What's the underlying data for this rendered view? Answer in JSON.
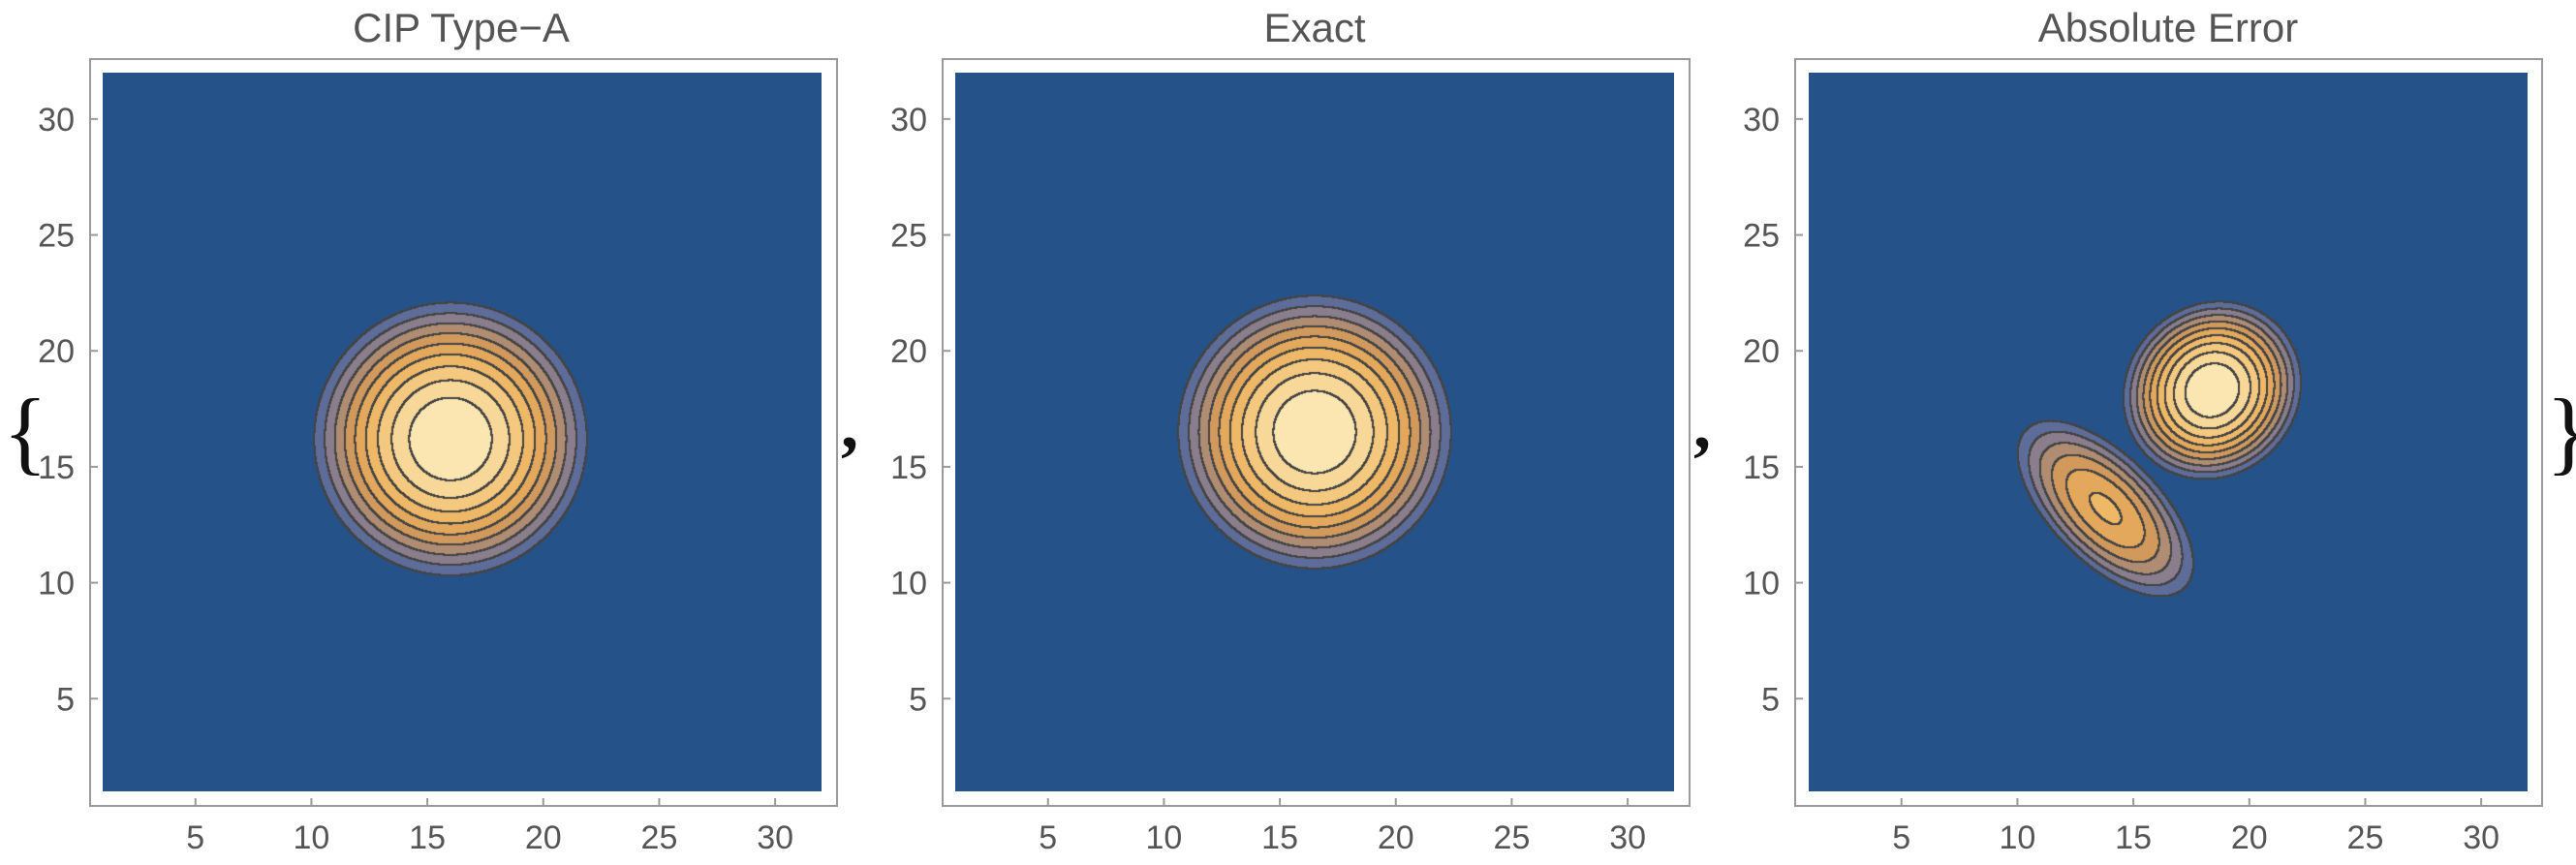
{
  "list_open_brace": "{",
  "list_close_brace": "}",
  "separators": [
    ",",
    ","
  ],
  "colors": {
    "background": "#245289",
    "frame": "#9a9a9a",
    "contour_line": "#444444",
    "scale": [
      "#245289",
      "#5e6c99",
      "#8a7e8c",
      "#b08d72",
      "#d19a5c",
      "#e3a85b",
      "#eeb867",
      "#f4c97f",
      "#f8d898",
      "#fbe6b1",
      "#fdf0c7"
    ]
  },
  "chart_data": [
    {
      "type": "contour",
      "title": "CIP Type−A",
      "xlim": [
        1,
        32
      ],
      "ylim": [
        1,
        32
      ],
      "xticks": [
        5,
        10,
        15,
        20,
        25,
        30
      ],
      "yticks": [
        5,
        10,
        15,
        20,
        25,
        30
      ],
      "grid": false,
      "contour_levels": 10,
      "features": [
        {
          "kind": "peak",
          "center": [
            16.0,
            16.2
          ],
          "radius": 6.5,
          "aspect": 1.0,
          "rotation_deg": 0,
          "peak": 1.0
        }
      ]
    },
    {
      "type": "contour",
      "title": "Exact",
      "xlim": [
        1,
        32
      ],
      "ylim": [
        1,
        32
      ],
      "xticks": [
        5,
        10,
        15,
        20,
        25,
        30
      ],
      "yticks": [
        5,
        10,
        15,
        20,
        25,
        30
      ],
      "grid": false,
      "contour_levels": 10,
      "features": [
        {
          "kind": "peak",
          "center": [
            16.5,
            16.5
          ],
          "radius": 6.5,
          "aspect": 1.0,
          "rotation_deg": 0,
          "peak": 1.0
        }
      ]
    },
    {
      "type": "contour",
      "title": "Absolute Error",
      "xlim": [
        1,
        32
      ],
      "ylim": [
        1,
        32
      ],
      "xticks": [
        5,
        10,
        15,
        20,
        25,
        30
      ],
      "yticks": [
        5,
        10,
        15,
        20,
        25,
        30
      ],
      "grid": false,
      "contour_levels": 10,
      "features": [
        {
          "kind": "peak",
          "center": [
            18.4,
            18.3
          ],
          "radius": 4.4,
          "aspect": 0.92,
          "rotation_deg": 45,
          "peak": 1.0
        },
        {
          "kind": "ridge",
          "center": [
            13.8,
            13.2
          ],
          "radius": 5.6,
          "aspect": 0.48,
          "rotation_deg": -45,
          "peak": 0.62
        }
      ]
    }
  ]
}
